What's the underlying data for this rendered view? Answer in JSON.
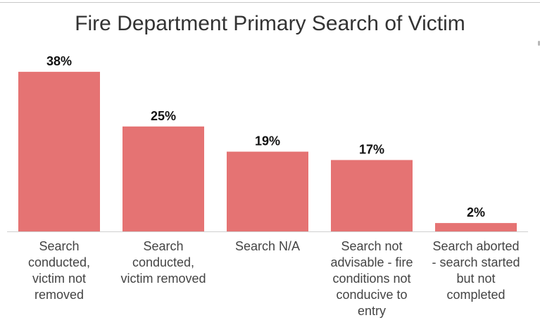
{
  "chart_data": {
    "type": "bar",
    "title": "Fire Department Primary Search of Victim",
    "xlabel": "",
    "ylabel": "",
    "categories": [
      "Search conducted, victim not removed",
      "Search conducted, victim removed",
      "Search N/A",
      "Search not advisable - fire conditions not conducive to entry",
      "Search aborted - search started but not completed"
    ],
    "category_lines": [
      [
        "Search",
        "conducted,",
        "victim not",
        "removed"
      ],
      [
        "Search",
        "conducted,",
        "victim removed"
      ],
      [
        "Search N/A"
      ],
      [
        "Search not",
        "advisable - fire",
        "conditions not",
        "conducive to",
        "entry"
      ],
      [
        "Search aborted",
        "- search started",
        "but not",
        "completed"
      ]
    ],
    "values": [
      38,
      25,
      19,
      17,
      2
    ],
    "data_labels": [
      "38%",
      "25%",
      "19%",
      "17%",
      "2%"
    ],
    "unit": "%",
    "ylim": [
      0,
      40
    ],
    "grid": false,
    "legend": "none",
    "bar_color": "#e57373",
    "axis_color": "#d0d0d0"
  }
}
